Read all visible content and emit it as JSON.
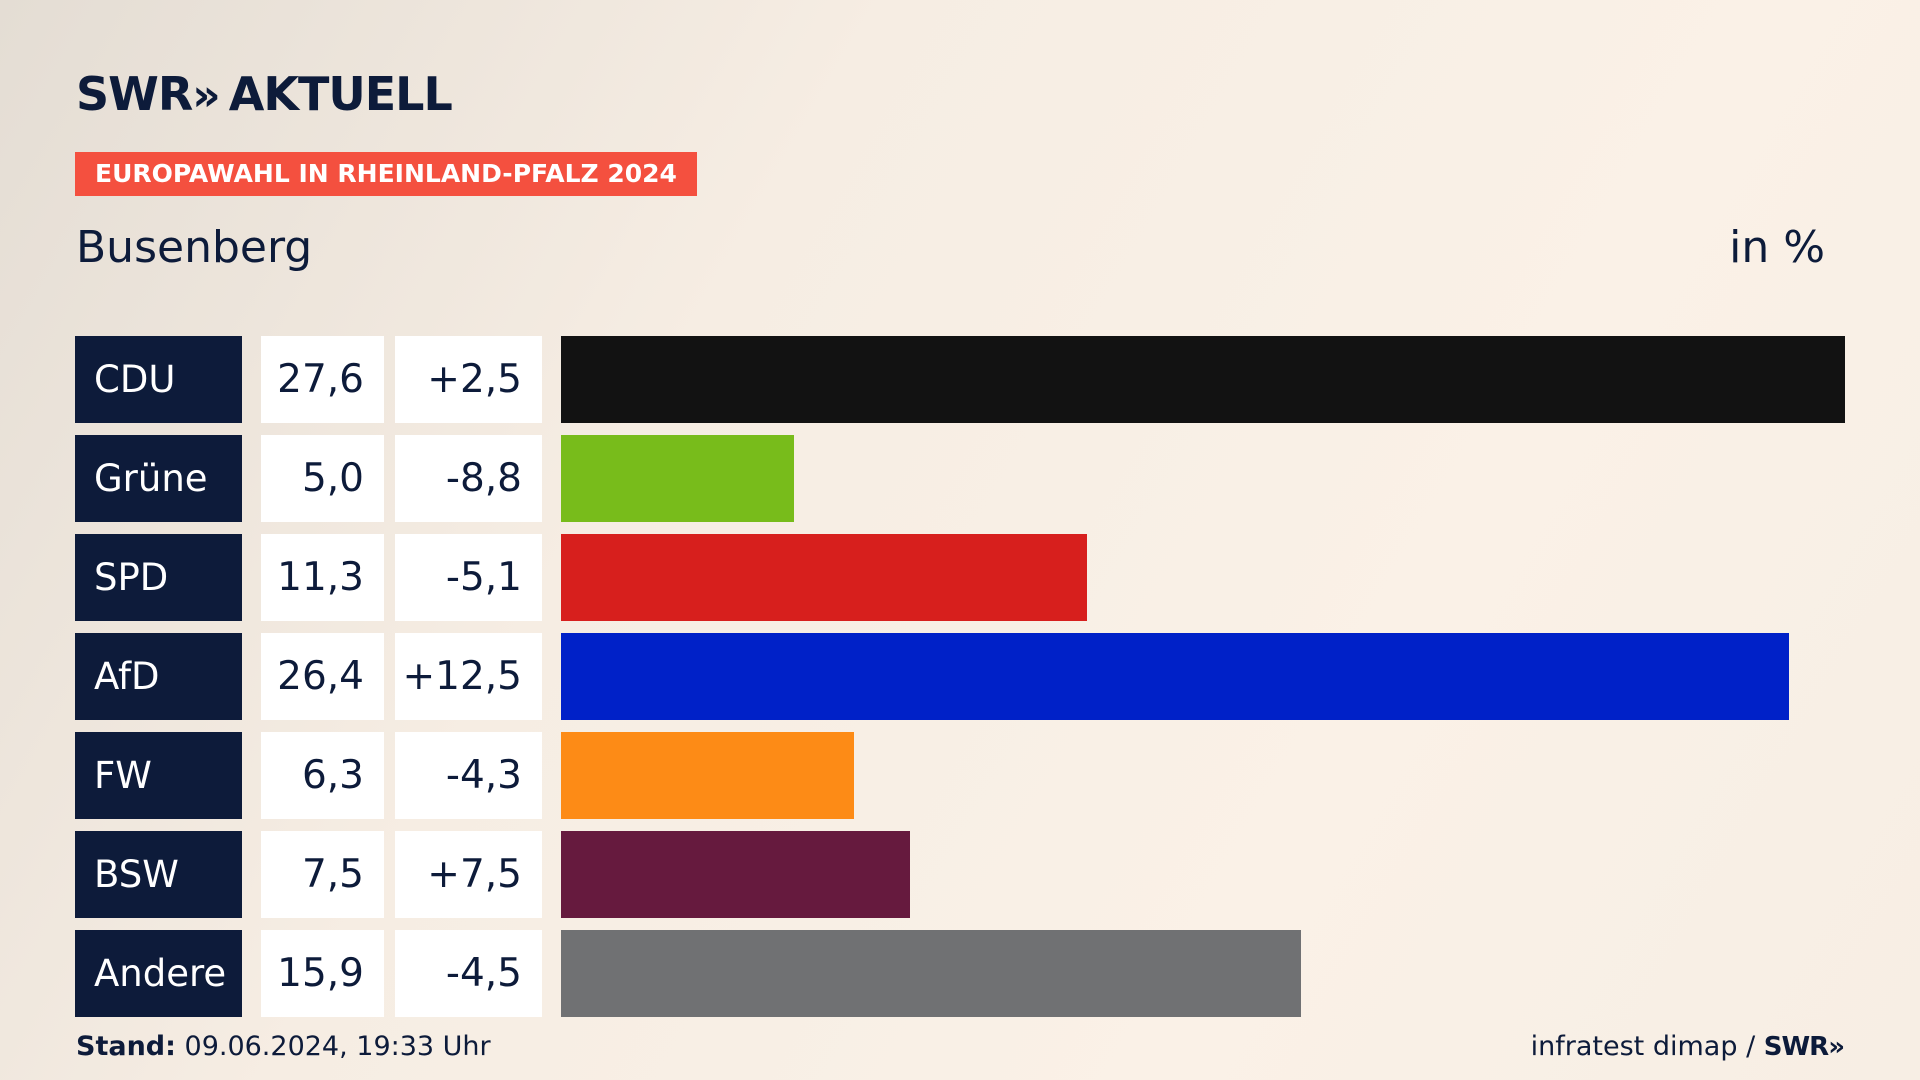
{
  "header": {
    "brand": "SWR",
    "brand_arrows": "»",
    "brand_suffix": "AKTUELL",
    "tag": "EUROPAWAHL IN RHEINLAND-PFALZ 2024",
    "region": "Busenberg",
    "unit": "in %"
  },
  "footer": {
    "stand_label": "Stand:",
    "stand_value": "09.06.2024, 19:33 Uhr",
    "source": "infratest dimap /",
    "source_brand": "SWR»"
  },
  "colors": {
    "tag": "#f4503f",
    "party_label_bg": "#0d1b3a"
  },
  "chart_data": {
    "type": "bar",
    "orientation": "horizontal",
    "unit": "in %",
    "categories": [
      "CDU",
      "Grüne",
      "SPD",
      "AfD",
      "FW",
      "BSW",
      "Andere"
    ],
    "values": [
      27.6,
      5.0,
      11.3,
      26.4,
      6.3,
      7.5,
      15.9
    ],
    "labels": [
      "27,6",
      "5,0",
      "11,3",
      "26,4",
      "6,3",
      "7,5",
      "15,9"
    ],
    "changes": [
      "+2,5",
      "-8,8",
      "-5,1",
      "+12,5",
      "-4,3",
      "+7,5",
      "-4,5"
    ],
    "bar_colors": [
      "#121212",
      "#78bc1b",
      "#d71f1d",
      "#0021c8",
      "#fd8b16",
      "#661a3e",
      "#707173"
    ],
    "xlim": [
      0,
      27.6
    ],
    "grid": false
  }
}
